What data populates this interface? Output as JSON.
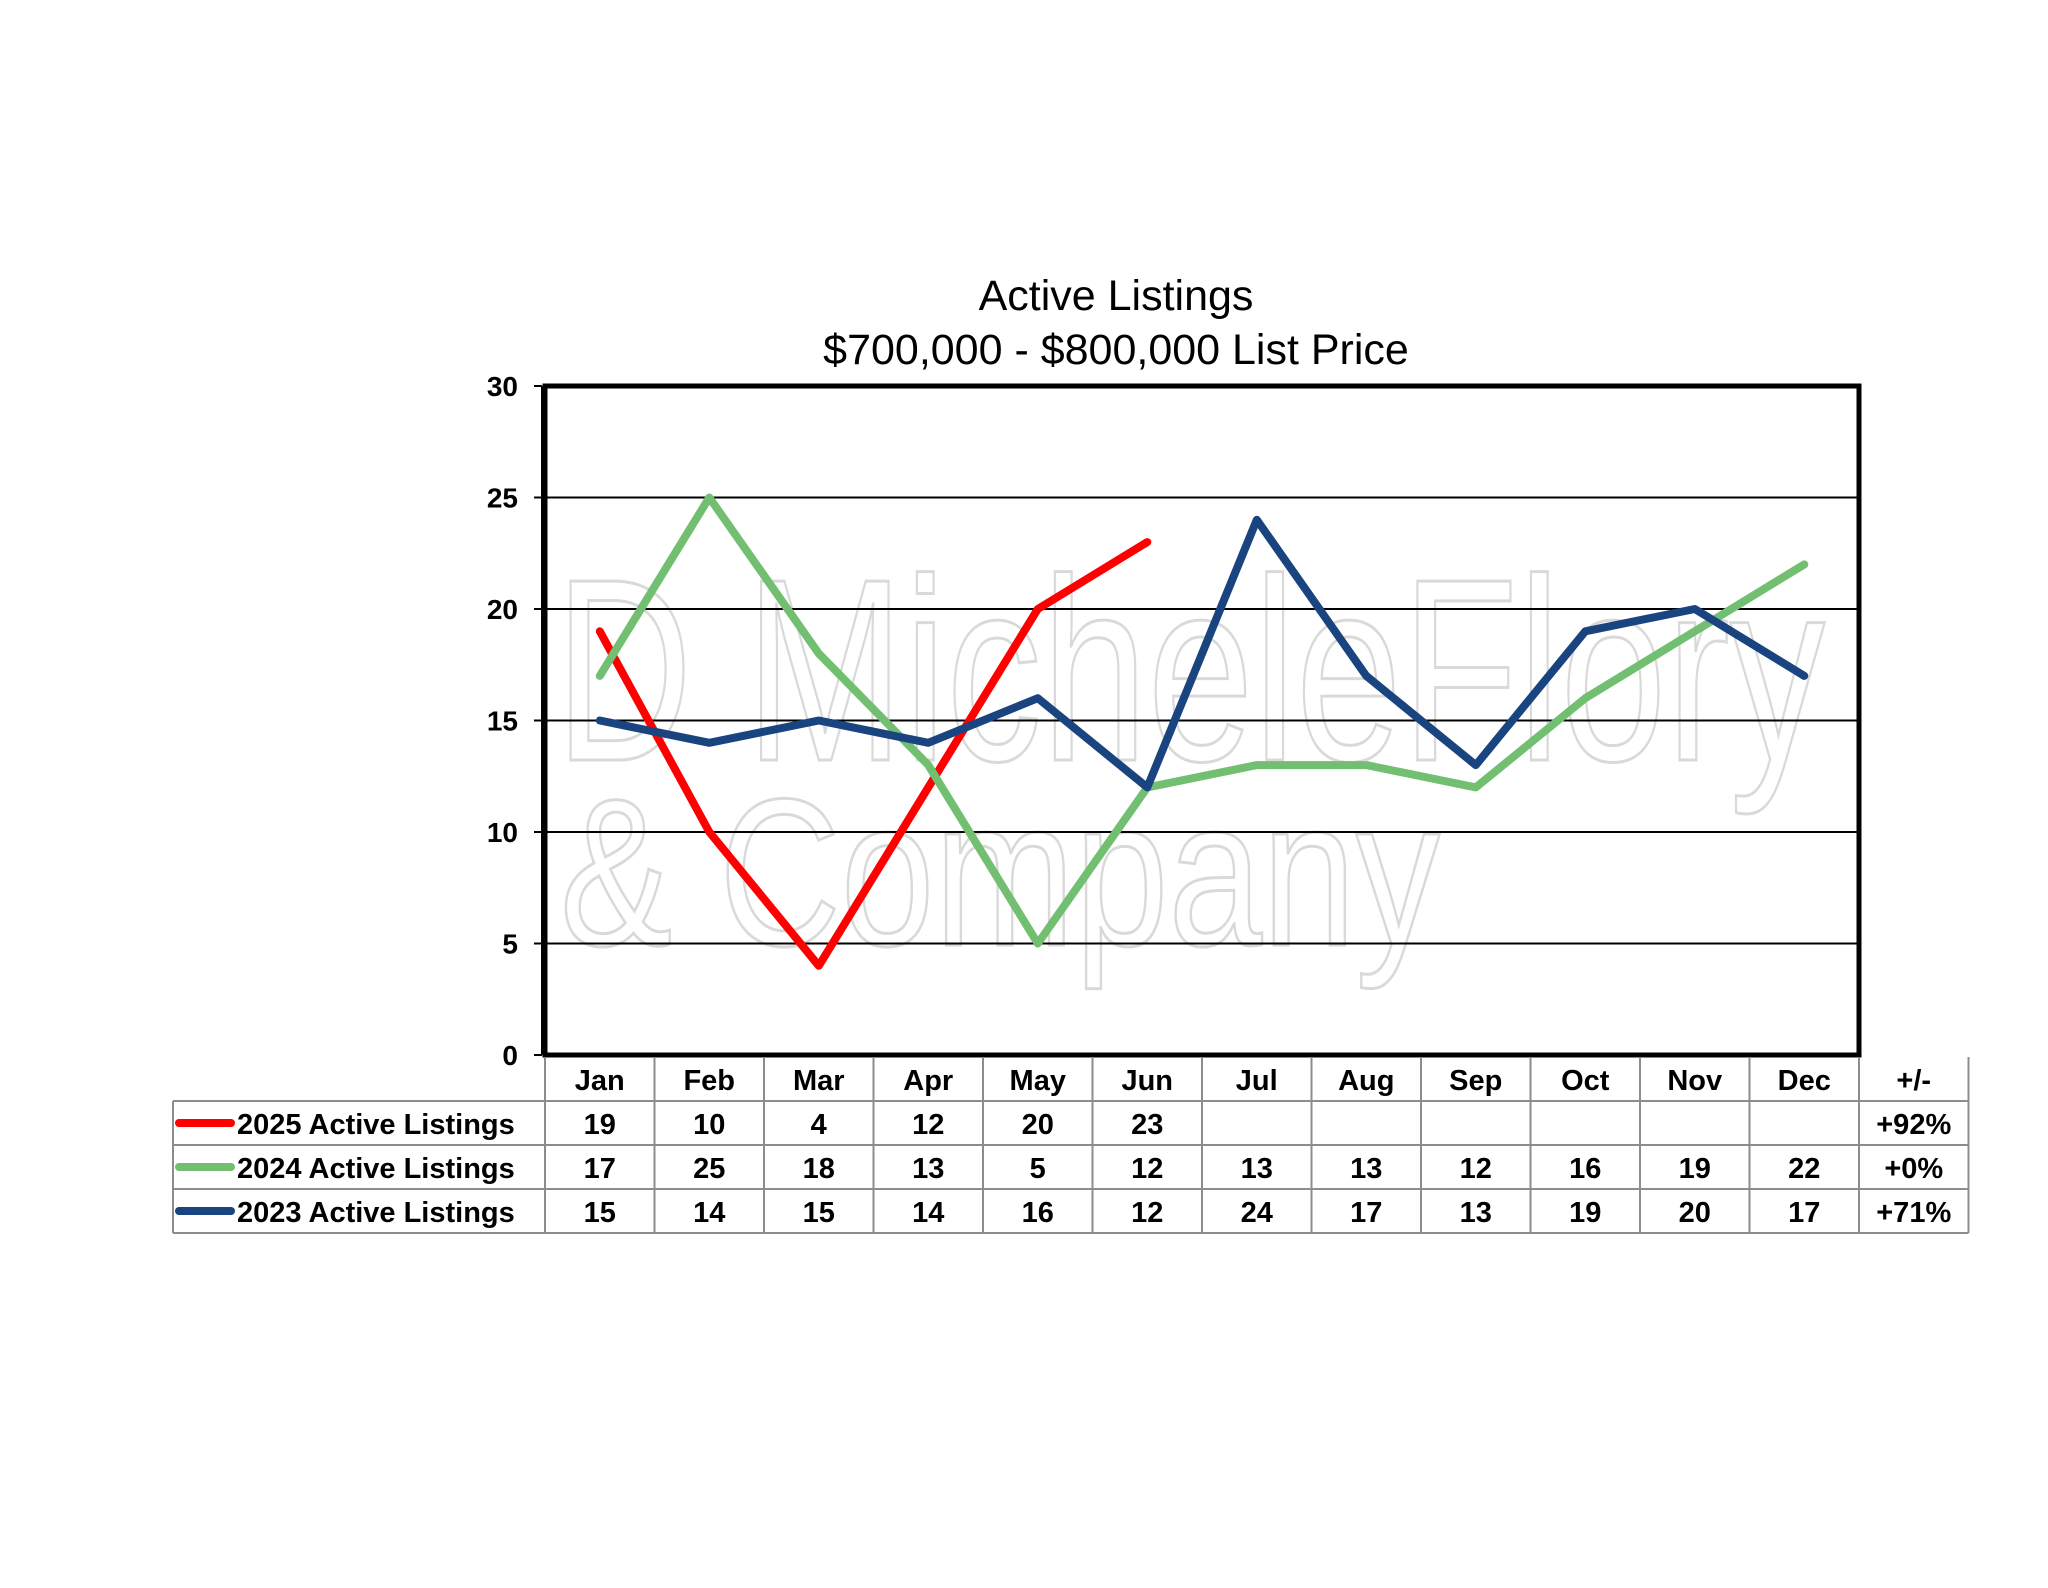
{
  "watermark": {
    "line1": "D MicheleFlory",
    "line2": "& Company"
  },
  "chart_data": {
    "type": "line",
    "title": "Active Listings",
    "subtitle": "$700,000 - $800,000 List Price",
    "categories": [
      "Jan",
      "Feb",
      "Mar",
      "Apr",
      "May",
      "Jun",
      "Jul",
      "Aug",
      "Sep",
      "Oct",
      "Nov",
      "Dec"
    ],
    "change_header": "+/-",
    "ylim": [
      0,
      30
    ],
    "yticks": [
      0,
      5,
      10,
      15,
      20,
      25,
      30
    ],
    "grid": true,
    "legend": "data-table",
    "series": [
      {
        "name": "2025 Active Listings",
        "color": "#ff0000",
        "values": [
          19,
          10,
          4,
          12,
          20,
          23,
          null,
          null,
          null,
          null,
          null,
          null
        ],
        "change": "+92%"
      },
      {
        "name": "2024 Active Listings",
        "color": "#72bf72",
        "values": [
          17,
          25,
          18,
          13,
          5,
          12,
          13,
          13,
          12,
          16,
          19,
          22
        ],
        "change": "+0%"
      },
      {
        "name": "2023 Active Listings",
        "color": "#1a4480",
        "values": [
          15,
          14,
          15,
          14,
          16,
          12,
          24,
          17,
          13,
          19,
          20,
          17
        ],
        "change": "+71%"
      }
    ]
  }
}
